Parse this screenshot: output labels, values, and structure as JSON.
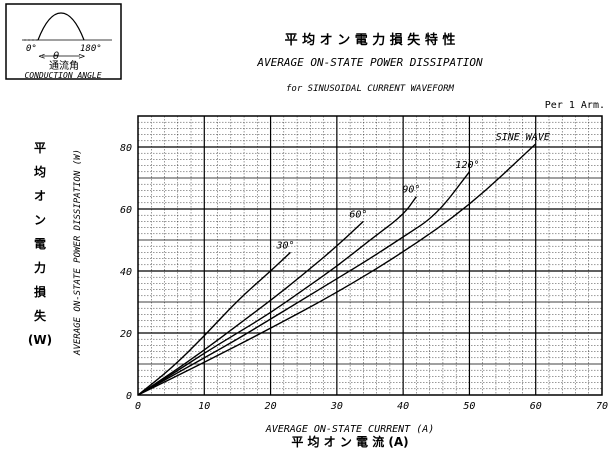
{
  "inset": {
    "angle_start": "0°",
    "angle_end": "180°",
    "theta_label": "θ",
    "jp_label": "通流角",
    "en_label": "CONDUCTION ANGLE"
  },
  "chart_data": {
    "type": "line",
    "title_jp": "平 均 オ ン 電 力 損 失 特 性",
    "title": "AVERAGE ON-STATE POWER DISSIPATION",
    "subtitle": "for SINUSOIDAL CURRENT WAVEFORM",
    "note": "Per 1 Arm.",
    "xlabel": "AVERAGE ON-STATE CURRENT (A)",
    "xlabel_jp": "平 均 オ ン 電 流 (A)",
    "ylabel": "AVERAGE ON-STATE POWER DISSIPATION (W)",
    "ylabel_jp": [
      "平",
      "均",
      "オ",
      "ン",
      "電",
      "力",
      "損",
      "失",
      "(W)"
    ],
    "xlim": [
      0,
      70
    ],
    "ylim": [
      0,
      90
    ],
    "xticks": [
      0,
      10,
      20,
      30,
      40,
      50,
      60,
      70
    ],
    "yticks": [
      0,
      20,
      40,
      60,
      80
    ],
    "grid": true,
    "series": [
      {
        "name": "30°",
        "x": [
          0,
          5,
          10,
          15,
          20,
          23
        ],
        "y": [
          0,
          8.5,
          19,
          30.5,
          40,
          46
        ]
      },
      {
        "name": "60°",
        "x": [
          0,
          5,
          10,
          15,
          20,
          25,
          30,
          34
        ],
        "y": [
          0,
          7,
          14.5,
          22.5,
          30.5,
          39,
          48,
          56
        ]
      },
      {
        "name": "90°",
        "x": [
          0,
          5,
          10,
          15,
          20,
          25,
          30,
          35,
          40,
          42
        ],
        "y": [
          0,
          6.5,
          13.5,
          20,
          26.5,
          34,
          41.5,
          50,
          58,
          64
        ]
      },
      {
        "name": "120°",
        "x": [
          0,
          5,
          10,
          15,
          20,
          25,
          30,
          35,
          40,
          45,
          50
        ],
        "y": [
          0,
          6,
          12,
          18,
          24.5,
          31,
          37.5,
          44,
          51,
          58,
          72
        ]
      },
      {
        "name": "SINE WAVE",
        "x": [
          0,
          10,
          20,
          30,
          40,
          50,
          60
        ],
        "y": [
          0,
          10.5,
          21.5,
          33,
          46,
          61,
          81
        ]
      }
    ]
  }
}
